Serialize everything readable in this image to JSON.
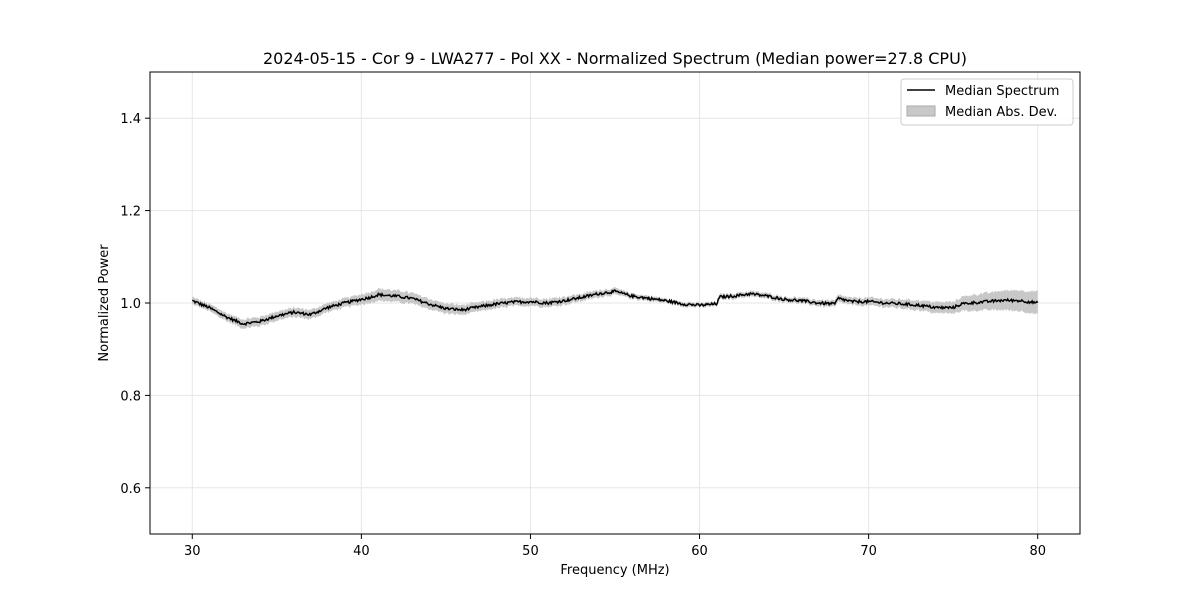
{
  "chart_data": {
    "type": "line",
    "title": "2024-05-15 - Cor 9 - LWA277 - Pol XX - Normalized Spectrum (Median power=27.8 CPU)",
    "xlabel": "Frequency (MHz)",
    "ylabel": "Normalized Power",
    "xlim": [
      27.5,
      82.5
    ],
    "ylim": [
      0.5,
      1.5
    ],
    "xticks": [
      30,
      40,
      50,
      60,
      70,
      80
    ],
    "xtick_labels": [
      "30",
      "40",
      "50",
      "60",
      "70",
      "80"
    ],
    "yticks": [
      0.6,
      0.8,
      1.0,
      1.2,
      1.4
    ],
    "ytick_labels": [
      "0.6",
      "0.8",
      "1.0",
      "1.2",
      "1.4"
    ],
    "grid": true,
    "legend_position": "top-right",
    "legend": [
      "Median Spectrum",
      "Median Abs. Dev."
    ],
    "series": [
      {
        "name": "Median Spectrum",
        "color": "#000000",
        "x": [
          30,
          31,
          32,
          33,
          34,
          35,
          36,
          37,
          38,
          39,
          40,
          40.5,
          41,
          42,
          43,
          44,
          45,
          46,
          47,
          48,
          49,
          50,
          51,
          52,
          53,
          54,
          55,
          56,
          57,
          58,
          59,
          60,
          61,
          61.2,
          62,
          63,
          64,
          65,
          66,
          67,
          68,
          68.2,
          69,
          70,
          71,
          72,
          73,
          74,
          75,
          75.5,
          76,
          77,
          78,
          79,
          80
        ],
        "values": [
          1.005,
          0.99,
          0.97,
          0.955,
          0.96,
          0.972,
          0.98,
          0.975,
          0.99,
          1.0,
          1.008,
          1.012,
          1.018,
          1.015,
          1.01,
          0.998,
          0.988,
          0.985,
          0.992,
          0.998,
          1.002,
          1.003,
          1.0,
          1.005,
          1.012,
          1.02,
          1.025,
          1.015,
          1.01,
          1.005,
          0.998,
          0.995,
          0.998,
          1.013,
          1.015,
          1.02,
          1.015,
          1.008,
          1.005,
          1.0,
          0.998,
          1.01,
          1.003,
          1.003,
          1.0,
          0.998,
          0.995,
          0.99,
          0.99,
          0.998,
          1.0,
          1.003,
          1.006,
          1.005,
          1.0
        ]
      },
      {
        "name": "Median Abs. Dev.",
        "color": "#c8c8c8",
        "mad": [
          0.007,
          0.007,
          0.008,
          0.009,
          0.009,
          0.009,
          0.009,
          0.009,
          0.009,
          0.009,
          0.01,
          0.011,
          0.012,
          0.012,
          0.011,
          0.01,
          0.01,
          0.01,
          0.009,
          0.009,
          0.008,
          0.008,
          0.008,
          0.008,
          0.007,
          0.007,
          0.006,
          0.005,
          0.005,
          0.004,
          0.004,
          0.004,
          0.004,
          0.005,
          0.005,
          0.005,
          0.005,
          0.005,
          0.005,
          0.006,
          0.006,
          0.007,
          0.007,
          0.008,
          0.008,
          0.009,
          0.01,
          0.011,
          0.012,
          0.014,
          0.016,
          0.018,
          0.02,
          0.022,
          0.024
        ]
      }
    ]
  }
}
